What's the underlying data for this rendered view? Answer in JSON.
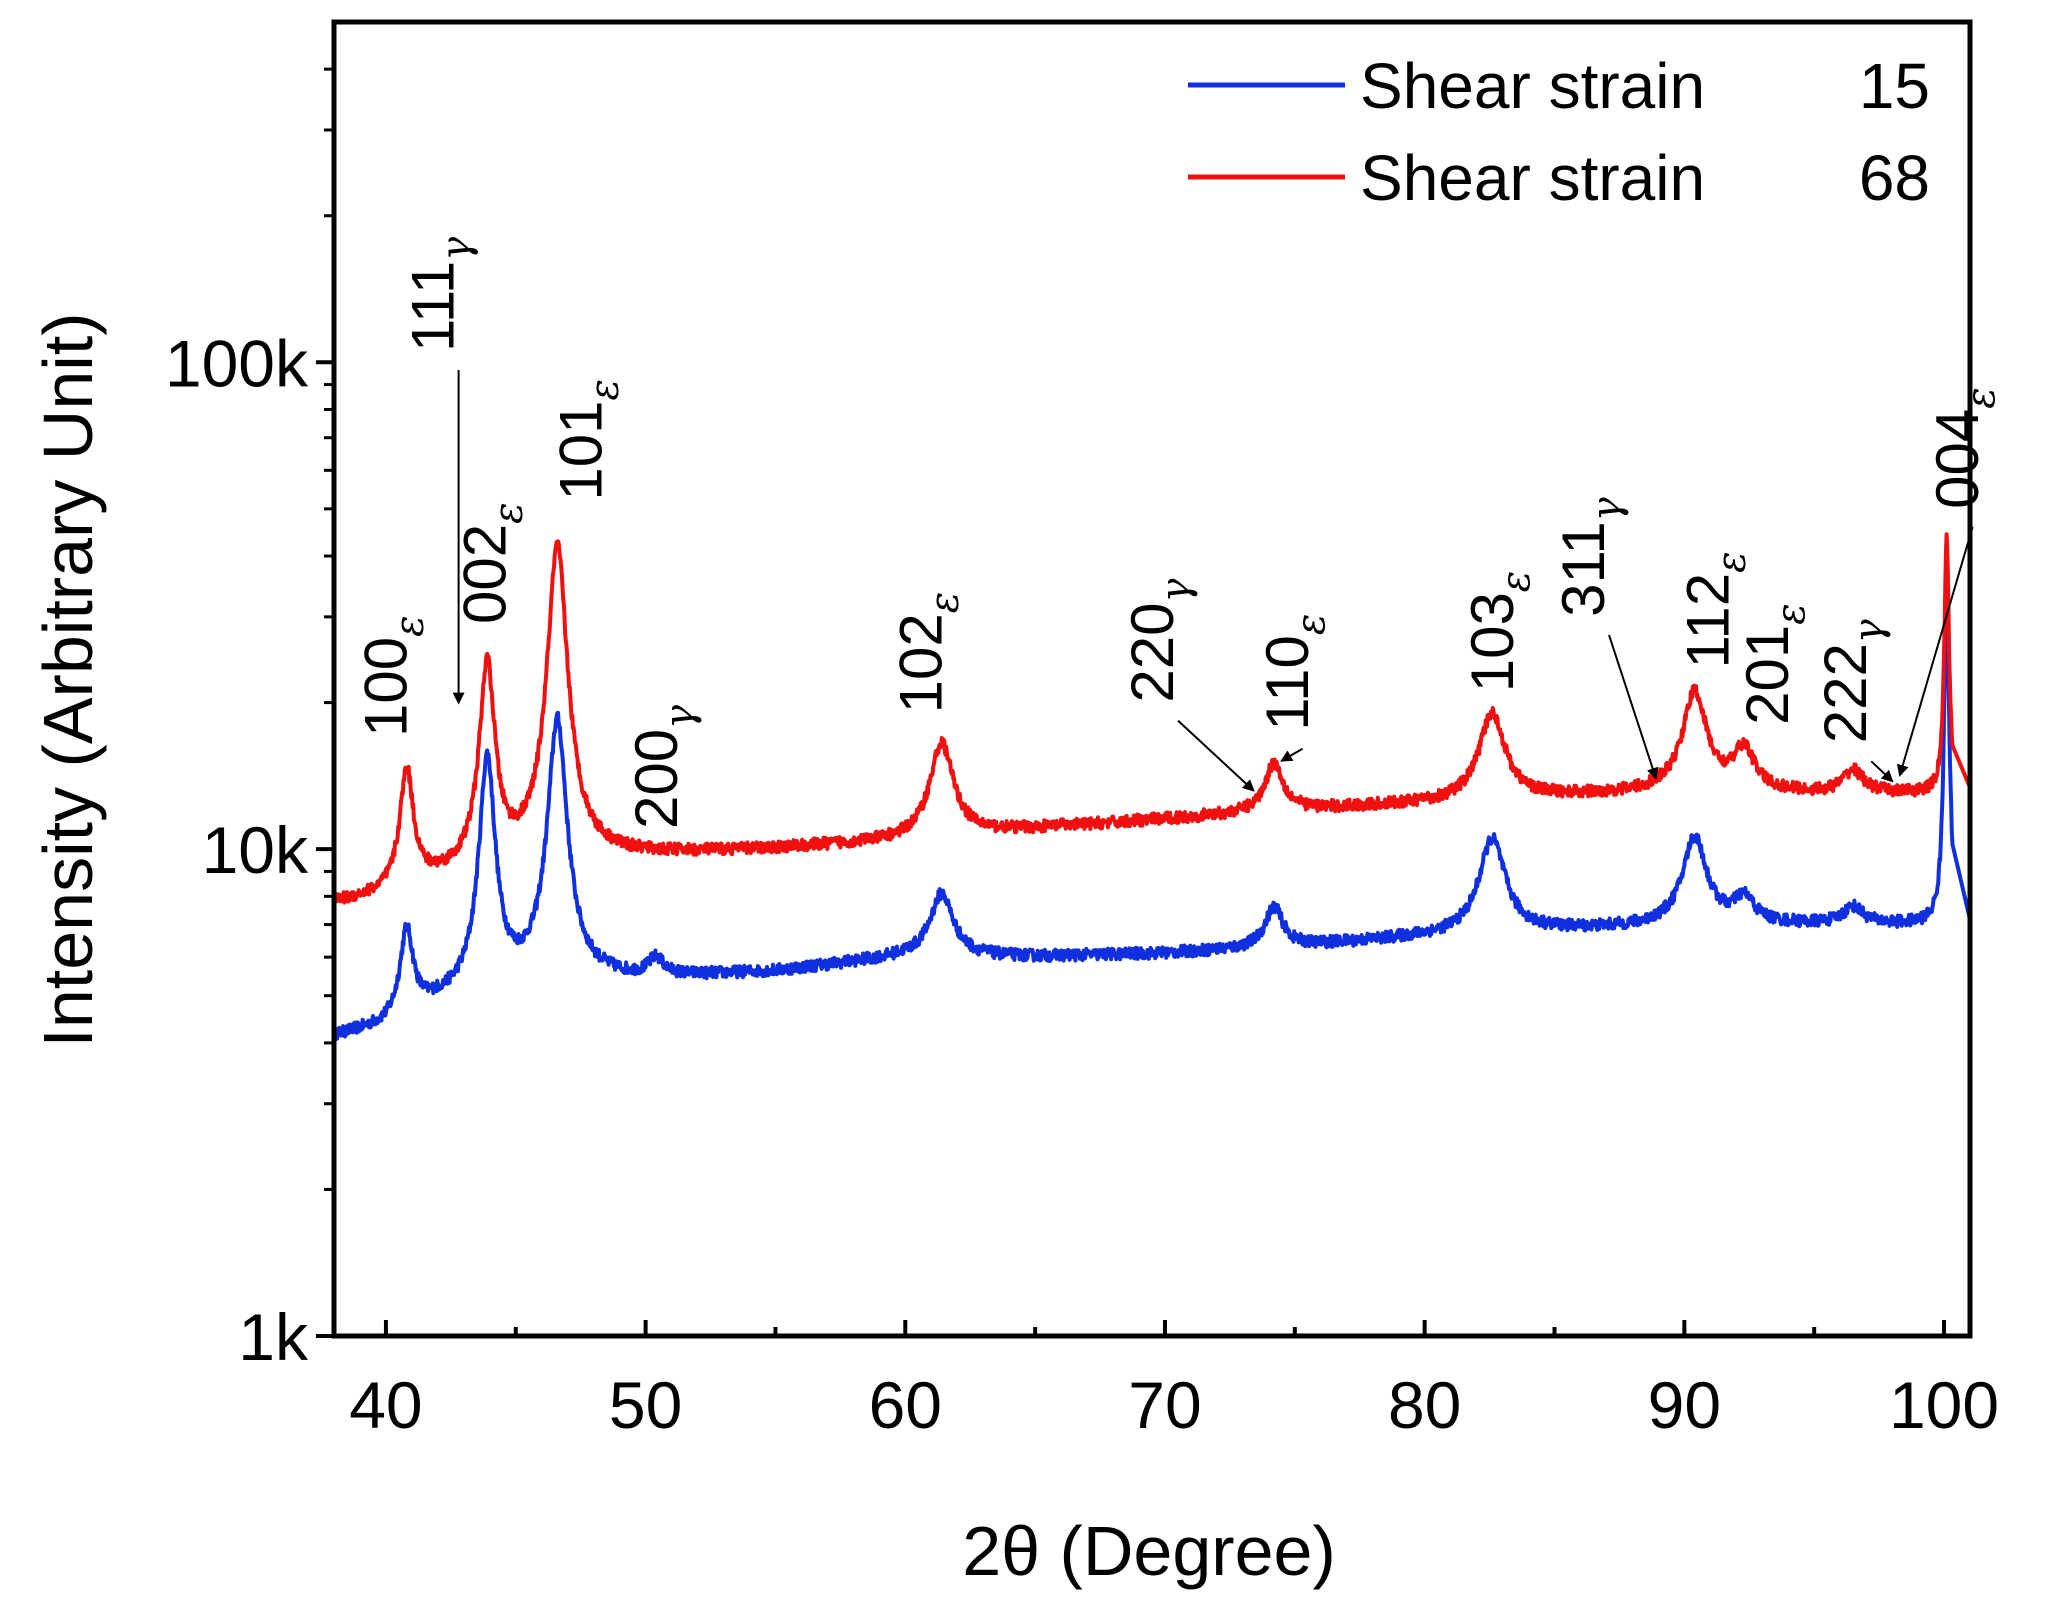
{
  "chart_data": {
    "type": "line",
    "title": "",
    "xlabel": "2θ (Degree)",
    "ylabel": "Intensity (Arbitrary Unit)",
    "xlim": [
      38,
      101
    ],
    "ylim": [
      1000,
      500000
    ],
    "yscale": "log",
    "xticks": [
      40,
      50,
      60,
      70,
      80,
      90,
      100
    ],
    "xtick_labels": [
      "40",
      "50",
      "60",
      "70",
      "80",
      "90",
      "100"
    ],
    "yticks": [
      1000,
      10000,
      100000
    ],
    "ytick_labels": [
      "1k",
      "10k",
      "100k"
    ],
    "legend_position": "top-right",
    "series": [
      {
        "name": "Shear strain",
        "legend_value": "15",
        "color": "#1030e0",
        "baseline": [
          [
            38,
            4100
          ],
          [
            40,
            4300
          ],
          [
            42,
            4800
          ],
          [
            44,
            5100
          ],
          [
            46,
            5400
          ],
          [
            50,
            5400
          ],
          [
            55,
            5600
          ],
          [
            60,
            6000
          ],
          [
            65,
            6000
          ],
          [
            70,
            6100
          ],
          [
            75,
            6300
          ],
          [
            80,
            6600
          ],
          [
            85,
            6800
          ],
          [
            88,
            6900
          ],
          [
            90,
            7000
          ],
          [
            95,
            7000
          ],
          [
            100,
            7000
          ]
        ],
        "peaks": [
          {
            "x": 40.8,
            "y": 6800,
            "w": 0.28
          },
          {
            "x": 43.9,
            "y": 15500,
            "w": 0.3
          },
          {
            "x": 46.6,
            "y": 18500,
            "w": 0.35
          },
          {
            "x": 50.4,
            "y": 5900,
            "w": 0.35
          },
          {
            "x": 61.4,
            "y": 8100,
            "w": 0.5
          },
          {
            "x": 74.2,
            "y": 7600,
            "w": 0.4
          },
          {
            "x": 82.6,
            "y": 10500,
            "w": 0.55
          },
          {
            "x": 90.4,
            "y": 10600,
            "w": 0.5
          },
          {
            "x": 92.3,
            "y": 7900,
            "w": 0.45
          },
          {
            "x": 96.5,
            "y": 7600,
            "w": 0.45
          },
          {
            "x": 100.1,
            "y": 36000,
            "w": 0.08
          }
        ],
        "tail": [
          [
            101.1,
            6800
          ]
        ]
      },
      {
        "name": "Shear strain",
        "legend_value": "68",
        "color": "#f01010",
        "baseline": [
          [
            38,
            7700
          ],
          [
            40,
            8000
          ],
          [
            42,
            8600
          ],
          [
            44,
            9000
          ],
          [
            46,
            9500
          ],
          [
            50,
            9700
          ],
          [
            55,
            10000
          ],
          [
            60,
            10400
          ],
          [
            65,
            11000
          ],
          [
            70,
            11500
          ],
          [
            75,
            12000
          ],
          [
            80,
            12400
          ],
          [
            85,
            12800
          ],
          [
            88,
            13000
          ],
          [
            90,
            13200
          ],
          [
            95,
            13000
          ],
          [
            100,
            13000
          ]
        ],
        "peaks": [
          {
            "x": 40.8,
            "y": 14500,
            "w": 0.28
          },
          {
            "x": 43.9,
            "y": 24000,
            "w": 0.3
          },
          {
            "x": 46.6,
            "y": 42000,
            "w": 0.35
          },
          {
            "x": 61.4,
            "y": 16500,
            "w": 0.5
          },
          {
            "x": 74.2,
            "y": 15000,
            "w": 0.4
          },
          {
            "x": 82.6,
            "y": 19000,
            "w": 0.55
          },
          {
            "x": 90.4,
            "y": 21000,
            "w": 0.5
          },
          {
            "x": 92.3,
            "y": 16000,
            "w": 0.45
          },
          {
            "x": 96.5,
            "y": 14500,
            "w": 0.45
          },
          {
            "x": 100.1,
            "y": 44000,
            "w": 0.08
          }
        ],
        "tail": [
          [
            101.1,
            13000
          ]
        ]
      }
    ],
    "annotations": [
      {
        "base": "100",
        "phase": "ε",
        "x": 40.8,
        "y": 17000,
        "arrow": null
      },
      {
        "base": "111",
        "phase": "γ",
        "x": 42.6,
        "y": 105000,
        "arrow": {
          "x": 42.8,
          "y": 20000
        }
      },
      {
        "base": "002",
        "phase": "ε",
        "x": 44.6,
        "y": 29000,
        "arrow": null
      },
      {
        "base": "101",
        "phase": "ε",
        "x": 48.3,
        "y": 52000,
        "arrow": null
      },
      {
        "base": "200",
        "phase": "γ",
        "x": 51.2,
        "y": 11000,
        "arrow": null
      },
      {
        "base": "102",
        "phase": "ε",
        "x": 61.4,
        "y": 19000,
        "arrow": null
      },
      {
        "base": "220",
        "phase": "γ",
        "x": 70.3,
        "y": 20000,
        "arrow": {
          "x": 73.4,
          "y": 13200
        }
      },
      {
        "base": "110",
        "phase": "ε",
        "x": 75.5,
        "y": 17500,
        "arrow": {
          "x": 74.5,
          "y": 15200
        }
      },
      {
        "base": "103",
        "phase": "ε",
        "x": 83.4,
        "y": 21000,
        "arrow": null
      },
      {
        "base": "311",
        "phase": "γ",
        "x": 86.9,
        "y": 30000,
        "arrow": {
          "x": 88.9,
          "y": 14000
        }
      },
      {
        "base": "112",
        "phase": "ε",
        "x": 91.7,
        "y": 23500,
        "arrow": null
      },
      {
        "base": "201",
        "phase": "ε",
        "x": 94.0,
        "y": 18000,
        "arrow": null
      },
      {
        "base": "222",
        "phase": "γ",
        "x": 97.0,
        "y": 16500,
        "arrow": {
          "x": 98.0,
          "y": 13800
        }
      },
      {
        "base": "004",
        "phase": "ε",
        "x": 101.3,
        "y": 50000,
        "arrow": {
          "x": 98.3,
          "y": 14200
        }
      }
    ]
  }
}
